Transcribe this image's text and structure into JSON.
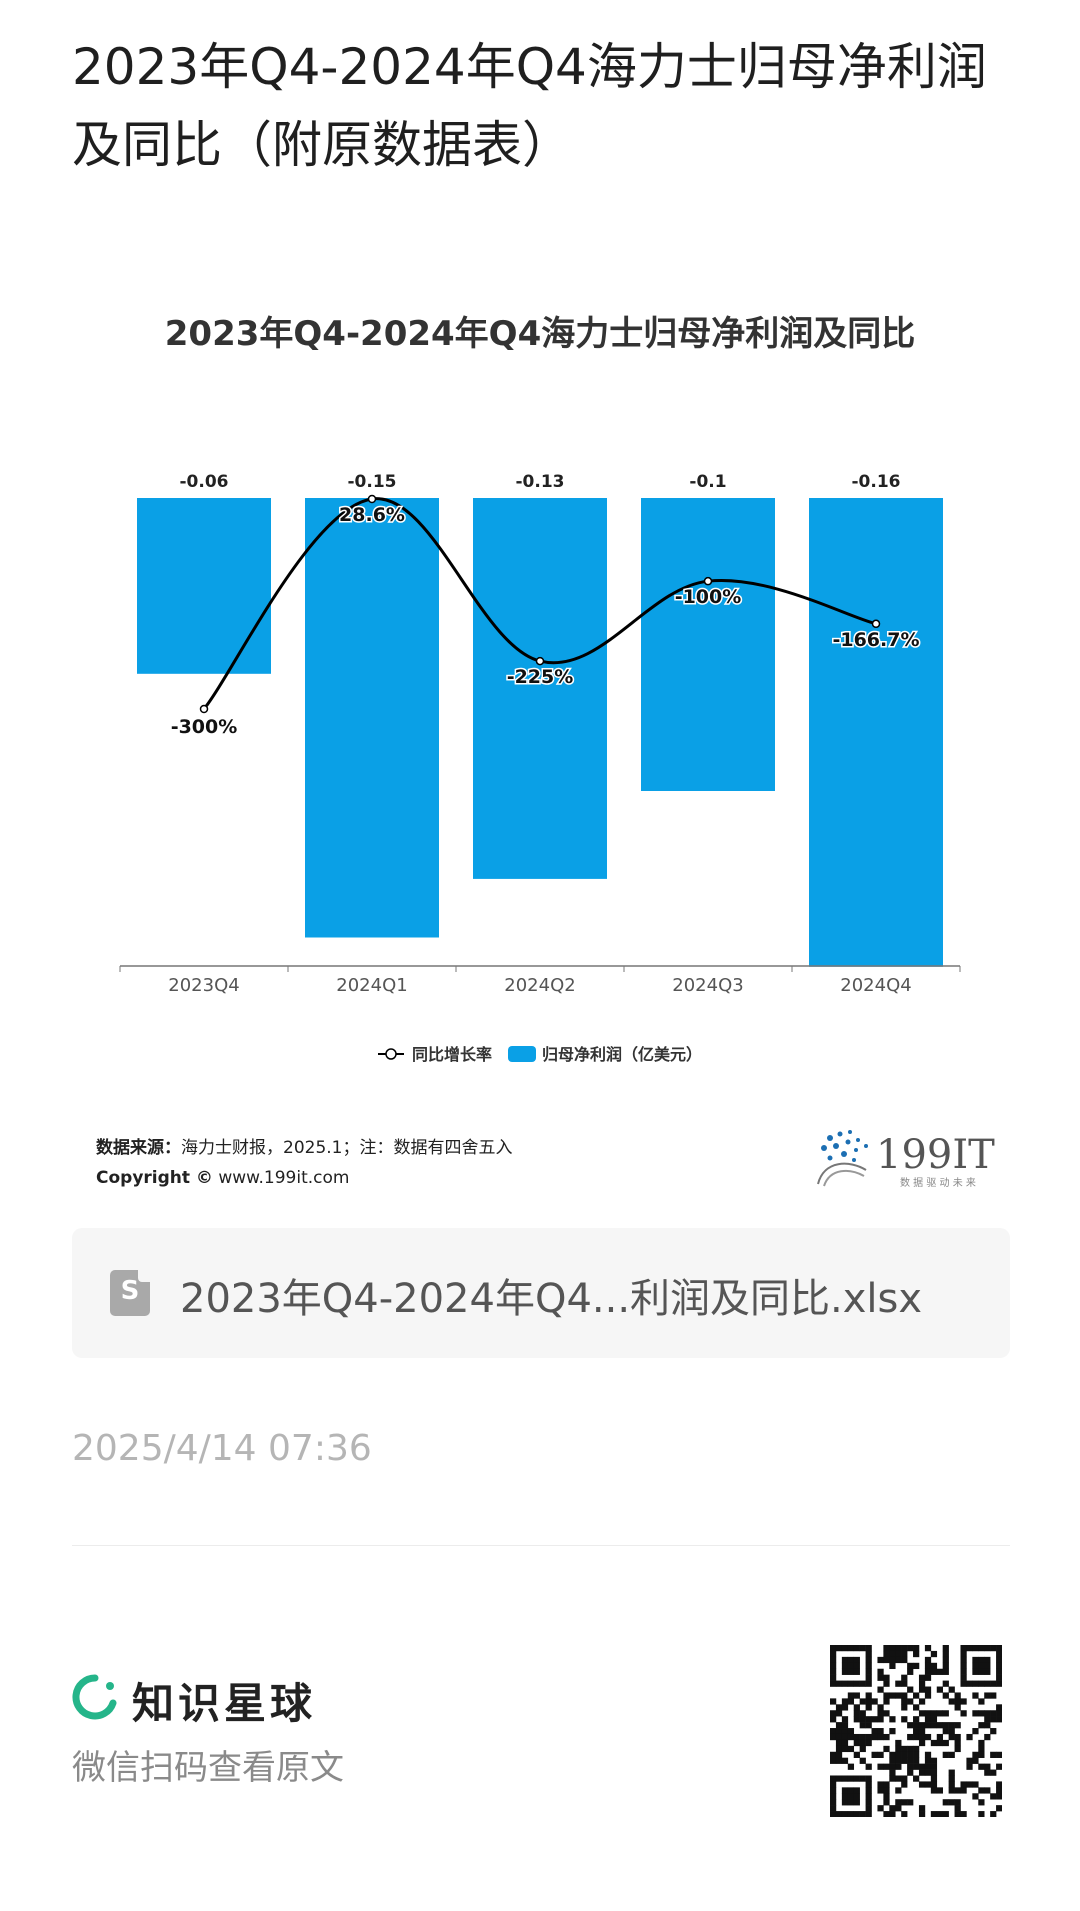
{
  "page": {
    "title": "2023年Q4-2024年Q4海力士归母净利润及同比（附原数据表）"
  },
  "chart_data": {
    "type": "bar",
    "title": "2023年Q4-2024年Q4海力士归母净利润及同比",
    "categories": [
      "2023Q4",
      "2024Q1",
      "2024Q2",
      "2024Q3",
      "2024Q4"
    ],
    "series": [
      {
        "name": "归母净利润（亿美元）",
        "type": "bar",
        "values": [
          -0.06,
          -0.15,
          -0.13,
          -0.1,
          -0.16
        ],
        "color": "#0aa0e6",
        "labels": [
          "-0.06",
          "-0.15",
          "-0.13",
          "-0.1",
          "-0.16"
        ]
      },
      {
        "name": "同比增长率",
        "type": "line",
        "values": [
          -300,
          28.6,
          -225,
          -100,
          -166.7
        ],
        "color": "#000000",
        "labels": [
          "-300%",
          "28.6%",
          "-225%",
          "-100%",
          "-166.7%"
        ]
      }
    ],
    "legend": {
      "position": "bottom",
      "items": [
        "同比增长率",
        "归母净利润（亿美元）"
      ]
    }
  },
  "source": {
    "label": "数据来源：",
    "text": "海力士财报，2025.1；注：数据有四舍五入",
    "copyright_label": "Copyright ©",
    "copyright_text": "www.199it.com"
  },
  "brand_logo": {
    "text": "199IT",
    "tagline": "数 据 驱 动 未 来"
  },
  "file": {
    "icon_letter": "S",
    "name": "2023年Q4-2024年Q4...利润及同比.xlsx"
  },
  "timestamp": "2025/4/14 07:36",
  "footer": {
    "app_name": "知识星球",
    "subtitle": "微信扫码查看原文"
  },
  "colors": {
    "bar": "#0aa0e6",
    "line": "#000000",
    "zsxq_green": "#25b58a"
  }
}
